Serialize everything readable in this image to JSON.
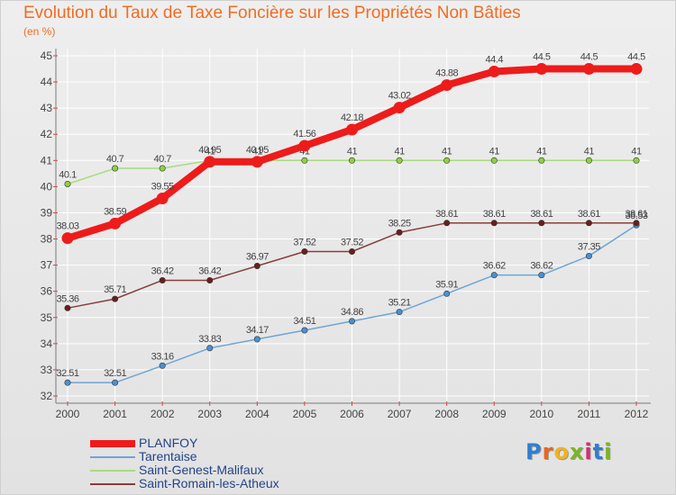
{
  "colors": {
    "title": "#f26c22",
    "legend_text": "#24438a",
    "grid": "#ffffff",
    "axis": "#7a7a7a",
    "tick_marks": "#e63a3a",
    "label_text": "#444444",
    "brand": [
      "#2f7fd1",
      "#e9651c",
      "#f0b323",
      "#2f7fd1",
      "#d22f6f",
      "#79b524"
    ]
  },
  "brand": {
    "name": "Proxiti",
    "letters": [
      "P",
      "r",
      "o",
      "x",
      "i",
      "t",
      "i"
    ],
    "letter_colors": [
      "#2f7fd1",
      "#e9651c",
      "#f0b323",
      "#79b524",
      "#d22f6f",
      "#2f7fd1",
      "#79b524"
    ]
  },
  "chart_data": {
    "type": "line",
    "title": "Evolution du Taux de Taxe Foncière sur les Propriétés Non Bâties",
    "ylabel": "(en %)",
    "xlabel": "",
    "ylim": [
      32,
      45
    ],
    "yticks": [
      "32",
      "33",
      "34",
      "35",
      "36",
      "37",
      "38",
      "39",
      "40",
      "41",
      "42",
      "43",
      "44",
      "45"
    ],
    "categories": [
      "2000",
      "2001",
      "2002",
      "2003",
      "2004",
      "2005",
      "2006",
      "2007",
      "2008",
      "2009",
      "2010",
      "2011",
      "2012"
    ],
    "grid": true,
    "legend": "bottom-left",
    "series": [
      {
        "name": "PLANFOY",
        "color": "#ee1b1b",
        "marker": "#ee1b1b",
        "width": 8,
        "values": [
          38.03,
          38.59,
          39.55,
          40.95,
          40.95,
          41.56,
          42.18,
          43.02,
          43.88,
          44.4,
          44.5,
          44.5,
          44.5
        ],
        "labels": [
          "38.03",
          "38.59",
          "39.55",
          "40.95",
          "40.95",
          "41.56",
          "42.18",
          "43.02",
          "43.88",
          "44.4",
          "44.5",
          "44.5",
          "44.5"
        ]
      },
      {
        "name": "Tarentaise",
        "color": "#6ea5d6",
        "marker": "#4a90d2",
        "width": 1.5,
        "values": [
          32.51,
          32.51,
          33.16,
          33.83,
          34.17,
          34.51,
          34.86,
          35.21,
          35.91,
          36.62,
          36.62,
          37.35,
          38.53
        ],
        "labels": [
          "32.51",
          "32.51",
          "33.16",
          "33.83",
          "34.17",
          "34.51",
          "34.86",
          "35.21",
          "35.91",
          "36.62",
          "36.62",
          "37.35",
          "38.53"
        ]
      },
      {
        "name": "Saint-Genest-Malifaux",
        "color": "#a6dc7e",
        "marker": "#8fd045",
        "width": 1.5,
        "values": [
          40.1,
          40.7,
          40.7,
          41,
          41,
          41,
          41,
          41,
          41,
          41,
          41,
          41,
          41
        ],
        "labels": [
          "40.1",
          "40.7",
          "40.7",
          "41",
          "41",
          "41",
          "41",
          "41",
          "41",
          "41",
          "41",
          "41",
          "41"
        ]
      },
      {
        "name": "Saint-Romain-les-Atheux",
        "color": "#8a3c3c",
        "marker": "#6a1e1e",
        "width": 1.5,
        "values": [
          35.36,
          35.71,
          36.42,
          36.42,
          36.97,
          37.52,
          37.52,
          38.25,
          38.61,
          38.61,
          38.61,
          38.61,
          38.61
        ],
        "labels": [
          "35.36",
          "35.71",
          "36.42",
          "36.42",
          "36.97",
          "37.52",
          "37.52",
          "38.25",
          "38.61",
          "38.61",
          "38.61",
          "38.61",
          "38.61"
        ]
      }
    ]
  }
}
